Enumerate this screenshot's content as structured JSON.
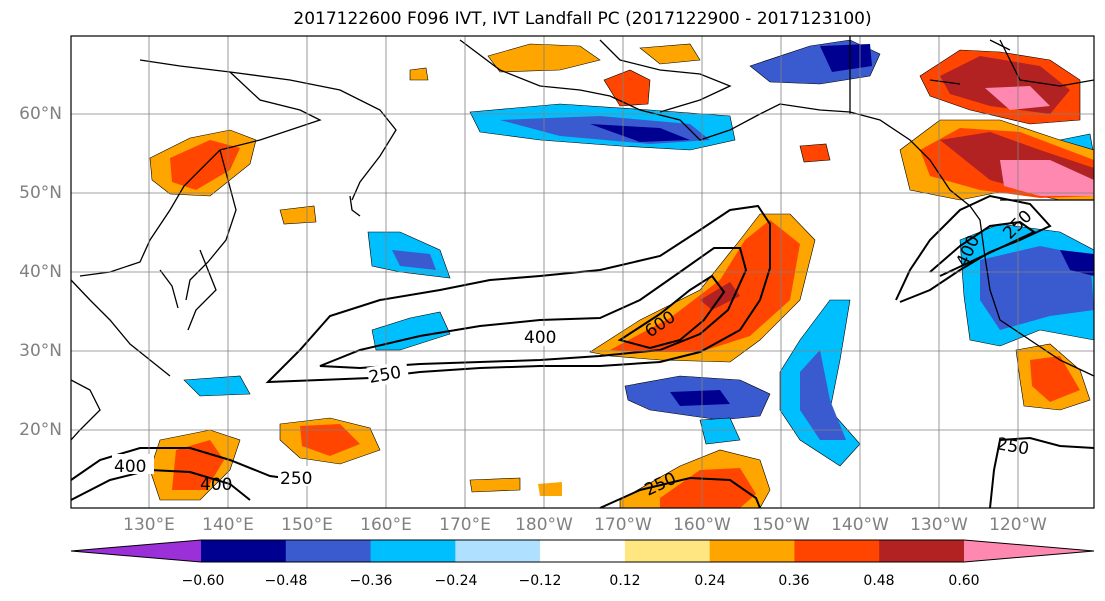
{
  "title": "2017122600 F096 IVT, IVT Landfall PC (2017122900 - 2017123100)",
  "lat_labels": [
    "60°N",
    "50°N",
    "40°N",
    "30°N",
    "20°N"
  ],
  "lon_labels": [
    "130°E",
    "140°E",
    "150°E",
    "160°E",
    "170°E",
    "180°W",
    "170°W",
    "160°W",
    "150°W",
    "140°W",
    "130°W",
    "120°W"
  ],
  "contour_labels": [
    "400",
    "600",
    "250",
    "400",
    "250",
    "400",
    "250",
    "250",
    "400",
    "250"
  ],
  "colorbar": {
    "colors": [
      "#9b30d9",
      "#000090",
      "#3a5bd0",
      "#00bfff",
      "#b0e0ff",
      "#ffffff",
      "#ffe680",
      "#ffa500",
      "#ff4500",
      "#b22222",
      "#ff88b0"
    ],
    "tick_labels": [
      "−0.60",
      "−0.48",
      "−0.36",
      "−0.24",
      "−0.12",
      "0.12",
      "0.24",
      "0.36",
      "0.48",
      "0.60"
    ]
  }
}
